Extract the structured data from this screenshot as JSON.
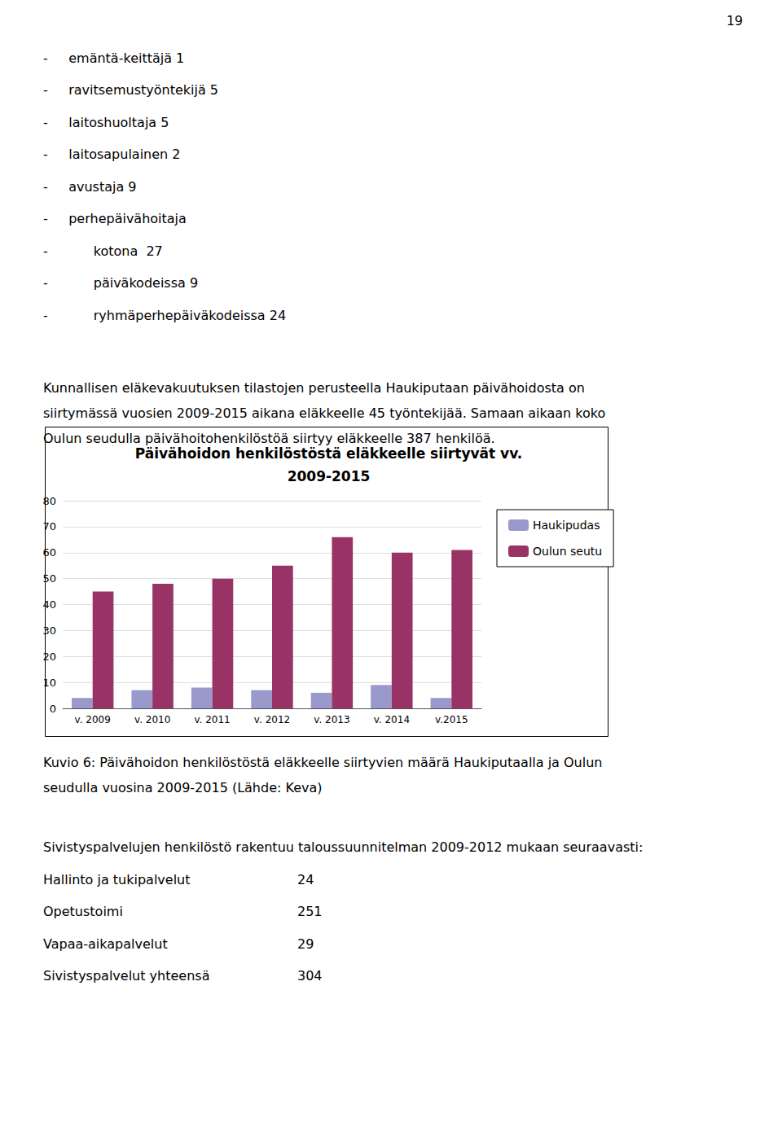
{
  "chart_data": {
    "type": "bar",
    "title": "Päivähoidon henkilöstöstä eläkkeelle siirtyvät vv.\n2009-2015",
    "categories": [
      "v. 2009",
      "v. 2010",
      "v. 2011",
      "v. 2012",
      "v. 2013",
      "v. 2014",
      "v.2015"
    ],
    "series": [
      {
        "name": "Haukipudas",
        "color": "#9999CC",
        "values": [
          4,
          7,
          8,
          7,
          6,
          9,
          4
        ]
      },
      {
        "name": "Oulun seutu",
        "color": "#993366",
        "values": [
          45,
          48,
          50,
          55,
          66,
          60,
          61
        ]
      }
    ],
    "ylim": [
      0,
      80
    ],
    "yticks": [
      0,
      10,
      20,
      30,
      40,
      50,
      60,
      70,
      80
    ],
    "grid": true,
    "legend": "right",
    "annotations": [
      [
        "19"
      ],
      [
        "-     emäntä-keittäjä 1",
        "-     ravitsemustyöntekijä 5",
        "-     laitoshuoltaja 5",
        "-     laitosapulainen 2",
        "-     avustaja 9",
        "-     perhepäivähoitaja",
        "-           kotona  27",
        "-           päiväkodeissa 9",
        "-           ryhmäperhepäiväkodeissa 24"
      ],
      [
        "Kunnallisen eläkevakuutuksen tilastojen perusteella Haukiputaan päivähoidosta on",
        "siirtymässä vuosien 2009-2015 aikana eläkkeelle 45 työntekijää. Samaan aikaan koko",
        "Oulun seudulla päivähoitohenkilöstöä siirtyy eläkkeelle 387 henkilöä."
      ],
      [
        "Kuvio 6: Päivähoidon henkilöstöstä eläkkeelle siirtyvien määrä Haukiputaalla ja Oulun",
        "seudulla vuosina 2009-2015 (Lähde: Keva)"
      ],
      [
        "Sivistyspalvelujen henkilöstö rakentuu taloussuunnitelman 2009-2012 mukaan seuraavasti:"
      ],
      [
        [
          "Hallinto ja tukipalvelut",
          "24"
        ],
        [
          "Opetustoimi",
          "251"
        ],
        [
          "Vapaa-aikapalvelut",
          "29"
        ],
        [
          "Sivistyspalvelut yhteensä",
          "304"
        ]
      ]
    ]
  }
}
